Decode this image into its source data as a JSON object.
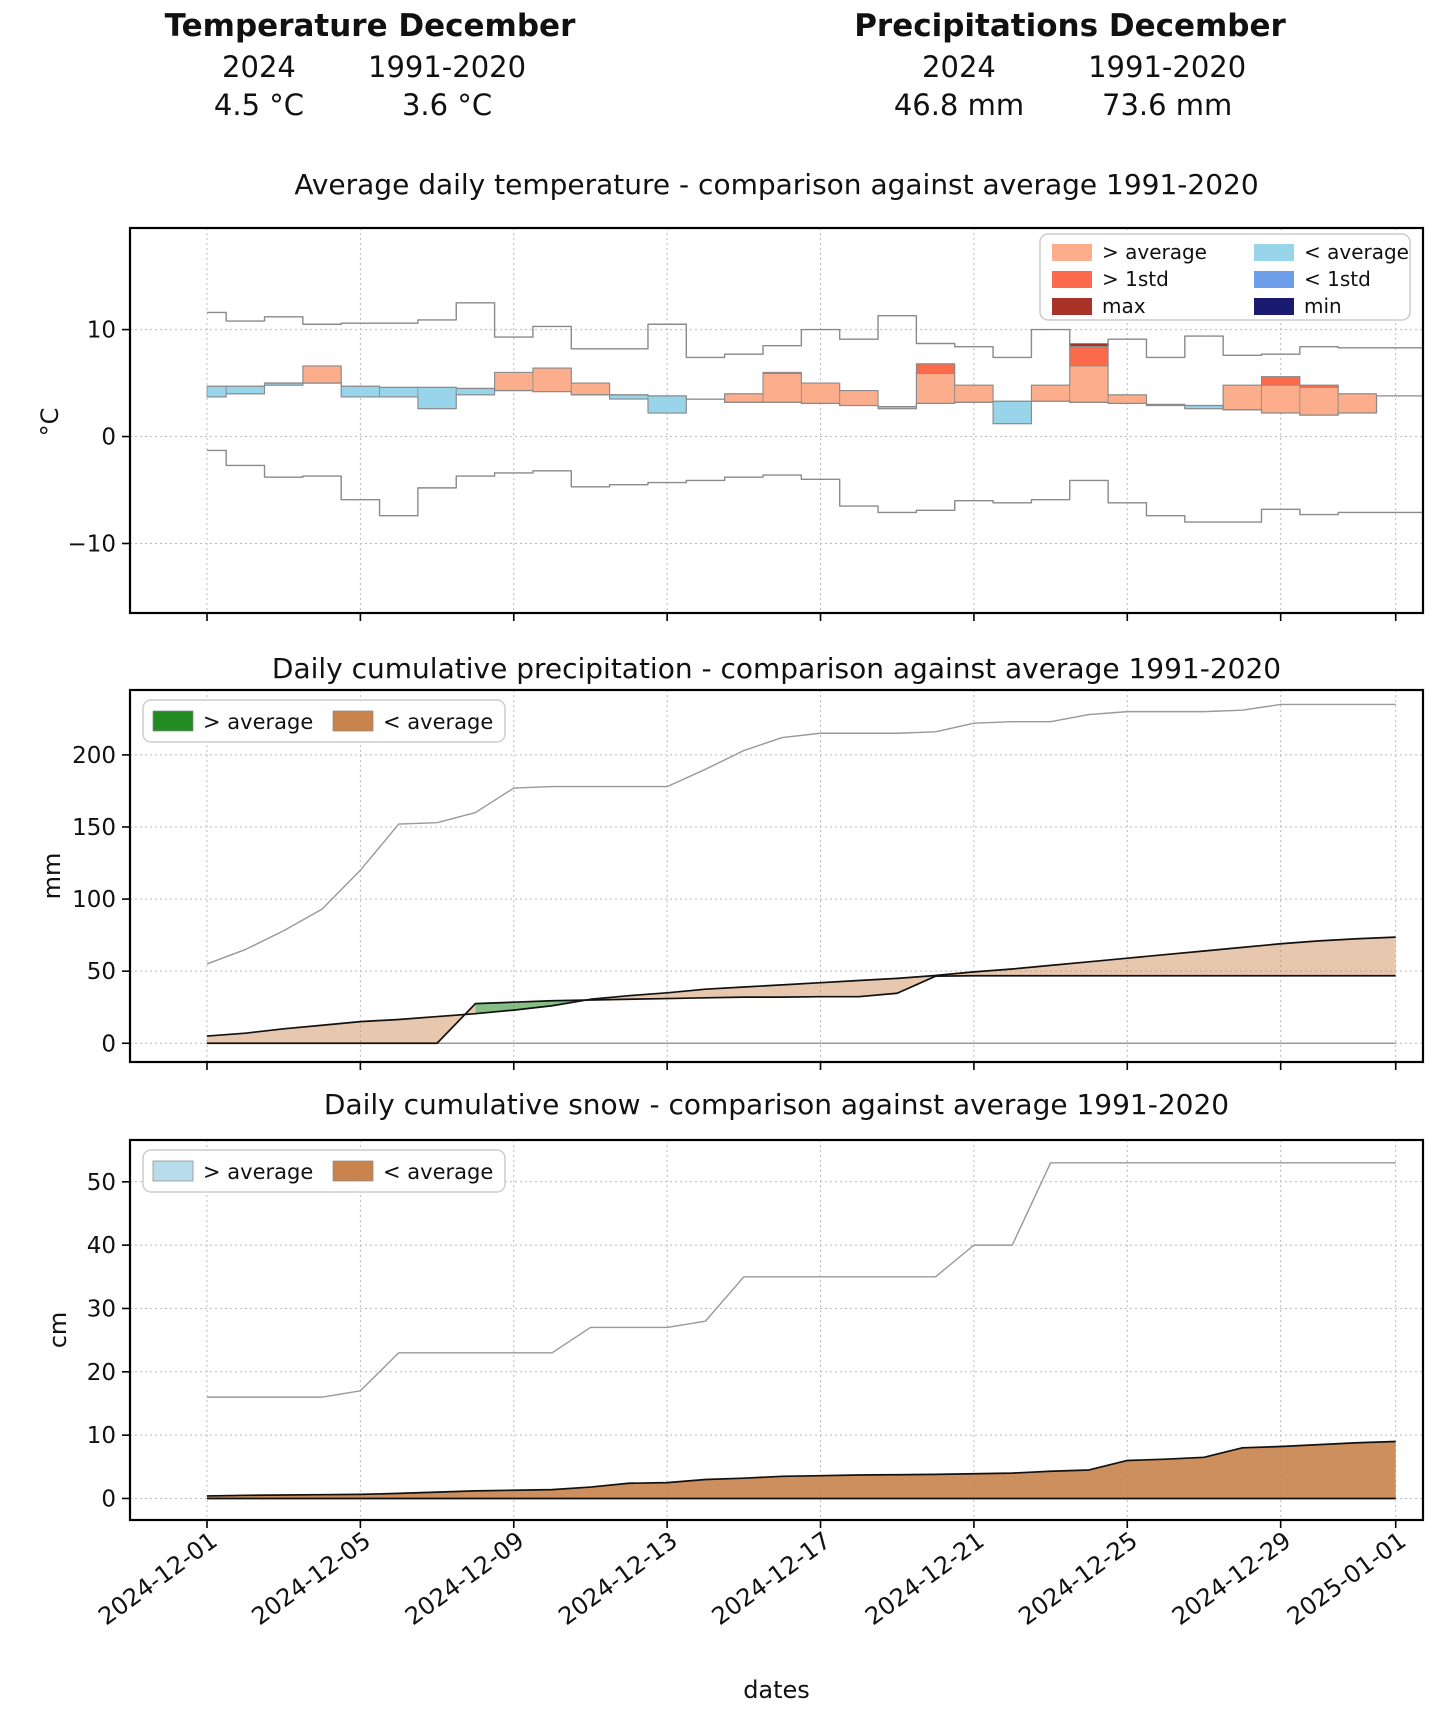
{
  "header": {
    "temperature": {
      "title": "Temperature December",
      "col1_label": "2024",
      "col1_value": "4.5 °C",
      "col2_label": "1991-2020",
      "col2_value": "3.6 °C"
    },
    "precipitation": {
      "title": "Precipitations December",
      "col1_label": "2024",
      "col1_value": "46.8 mm",
      "col2_label": "1991-2020",
      "col2_value": "73.6 mm"
    }
  },
  "colors": {
    "above_avg_temp": "#FCAE8C",
    "above_1std": "#FB6A4A",
    "record_max": "#A93228",
    "below_avg_temp": "#99D5EA",
    "below_1std": "#6D9EEA",
    "record_min": "#1A1A70",
    "above_avg_precip": "#228B22",
    "below_avg_precip": "#C9834C",
    "above_avg_snow": "#B8DCEA",
    "below_avg_snow": "#C9834C",
    "envelope_line": "#8a8a8a",
    "series_line": "#111111",
    "grid": "#bbbbbb"
  },
  "xlabel": "dates",
  "x_tick_labels": [
    "2024-12-01",
    "2024-12-05",
    "2024-12-09",
    "2024-12-13",
    "2024-12-17",
    "2024-12-21",
    "2024-12-25",
    "2024-12-29",
    "2025-01-01"
  ],
  "x_tick_day_index": [
    0,
    4,
    8,
    12,
    16,
    20,
    24,
    28,
    31
  ],
  "chart_data": [
    {
      "type": "bar",
      "subtype": "daily-step-comparison",
      "title": "Average daily temperature - comparison against average 1991-2020",
      "ylabel": "°C",
      "ylim": [
        -16.5,
        19.5
      ],
      "yticks": [
        -10,
        0,
        10
      ],
      "legend": [
        {
          "label": "> average",
          "color_key": "above_avg_temp"
        },
        {
          "label": "> 1std",
          "color_key": "above_1std"
        },
        {
          "label": "max",
          "color_key": "record_max"
        },
        {
          "label": "< average",
          "color_key": "below_avg_temp"
        },
        {
          "label": "< 1std",
          "color_key": "below_1std"
        },
        {
          "label": "min",
          "color_key": "record_min"
        }
      ],
      "days": "2024-12-01 .. 2025-01-01",
      "series": {
        "record_max": [
          11.6,
          10.8,
          11.2,
          10.5,
          10.6,
          10.6,
          10.9,
          12.5,
          9.3,
          10.3,
          8.2,
          8.2,
          10.5,
          7.4,
          7.7,
          8.5,
          10.0,
          9.1,
          11.3,
          8.7,
          8.4,
          7.4,
          10.0,
          8.4,
          9.1,
          7.4,
          9.4,
          7.6,
          7.7,
          8.4,
          8.3,
          8.3
        ],
        "record_min": [
          -1.3,
          -2.7,
          -3.8,
          -3.7,
          -5.9,
          -7.4,
          -4.8,
          -3.7,
          -3.4,
          -3.2,
          -4.7,
          -4.5,
          -4.3,
          -4.1,
          -3.8,
          -3.6,
          -4.0,
          -6.5,
          -7.1,
          -6.9,
          -6.0,
          -6.2,
          -5.9,
          -4.1,
          -6.2,
          -7.4,
          -8.0,
          -8.0,
          -6.8,
          -7.3,
          -7.1,
          -7.1
        ],
        "avg_1991_2020": [
          4.7,
          4.7,
          5.0,
          5.0,
          4.7,
          4.6,
          4.6,
          4.5,
          4.3,
          4.2,
          3.9,
          3.9,
          3.8,
          3.5,
          3.2,
          3.2,
          3.1,
          2.9,
          2.8,
          3.1,
          3.2,
          3.3,
          3.3,
          3.2,
          3.1,
          3.0,
          2.9,
          2.5,
          2.2,
          2.0,
          2.2,
          3.8
        ],
        "plus_1std": [
          7.4,
          7.4,
          7.7,
          7.7,
          7.4,
          7.3,
          7.3,
          7.2,
          7.0,
          6.9,
          6.6,
          6.6,
          6.5,
          6.2,
          5.9,
          5.9,
          5.8,
          5.6,
          5.5,
          5.9,
          5.9,
          6.0,
          6.0,
          6.6,
          5.8,
          5.7,
          5.6,
          5.2,
          4.8,
          4.6,
          4.9
        ],
        "temp_2024": [
          3.7,
          4.0,
          4.8,
          6.6,
          3.7,
          3.7,
          2.6,
          3.9,
          6.0,
          6.4,
          5.0,
          3.5,
          2.2,
          3.5,
          4.0,
          6.0,
          5.0,
          4.3,
          2.6,
          6.8,
          4.8,
          1.2,
          4.8,
          8.7,
          3.9,
          2.9,
          2.6,
          4.8,
          5.6,
          4.8,
          4.0
        ]
      }
    },
    {
      "type": "area",
      "subtype": "cumulative-comparison",
      "title": "Daily cumulative precipitation - comparison against average 1991-2020",
      "ylabel": "mm",
      "ylim": [
        -13,
        245
      ],
      "yticks": [
        0,
        50,
        100,
        150,
        200
      ],
      "legend": [
        {
          "label": "> average",
          "color_key": "above_avg_precip"
        },
        {
          "label": "< average",
          "color_key": "below_avg_precip"
        }
      ],
      "series": {
        "record_max": [
          55,
          65,
          78,
          93,
          120,
          152,
          153,
          160,
          177,
          178,
          178,
          178,
          178,
          190,
          203,
          212,
          215,
          215,
          215,
          216,
          222,
          223,
          223,
          228,
          230,
          230,
          230,
          231,
          235,
          235,
          235,
          235
        ],
        "record_min": [
          0,
          0,
          0,
          0,
          0,
          0,
          0,
          0,
          0,
          0,
          0,
          0,
          0,
          0,
          0,
          0,
          0,
          0,
          0,
          0,
          0,
          0,
          0,
          0,
          0,
          0,
          0,
          0,
          0,
          0,
          0,
          0
        ],
        "avg_1991_2020": [
          5,
          7,
          10,
          12.5,
          15,
          16.5,
          18.5,
          20.5,
          23,
          26,
          30.5,
          33,
          35,
          37.5,
          39,
          40.5,
          42,
          43.5,
          45,
          47,
          49.5,
          51.5,
          54,
          56.5,
          59,
          61.5,
          64,
          66.5,
          69,
          71,
          72.5,
          73.6
        ],
        "cum_2024": [
          0,
          0,
          0,
          0,
          0,
          0,
          0,
          27.5,
          28.5,
          29.5,
          30,
          30.5,
          31,
          31.5,
          32,
          32,
          32.3,
          32.3,
          34.7,
          46.5,
          46.8,
          46.8,
          46.8,
          46.8,
          46.8,
          46.8,
          46.8,
          46.8,
          46.8,
          46.8,
          46.8,
          46.8
        ]
      }
    },
    {
      "type": "area",
      "subtype": "cumulative-comparison",
      "title": "Daily cumulative snow - comparison against average 1991-2020",
      "ylabel": "cm",
      "ylim": [
        -3.4,
        56.6
      ],
      "yticks": [
        0,
        10,
        20,
        30,
        40,
        50
      ],
      "legend": [
        {
          "label": "> average",
          "color_key": "above_avg_snow"
        },
        {
          "label": "< average",
          "color_key": "below_avg_snow"
        }
      ],
      "series": {
        "record_max": [
          16,
          16,
          16,
          16,
          17,
          23,
          23,
          23,
          23,
          23,
          27,
          27,
          27,
          28,
          35,
          35,
          35,
          35,
          35,
          35,
          40,
          40,
          53,
          53,
          53,
          53,
          53,
          53,
          53,
          53,
          53,
          53
        ],
        "record_min": [
          0,
          0,
          0,
          0,
          0,
          0,
          0,
          0,
          0,
          0,
          0,
          0,
          0,
          0,
          0,
          0,
          0,
          0,
          0,
          0,
          0,
          0,
          0,
          0,
          0,
          0,
          0,
          0,
          0,
          0,
          0,
          0
        ],
        "avg_1991_2020": [
          0.4,
          0.5,
          0.55,
          0.6,
          0.65,
          0.8,
          1.0,
          1.2,
          1.3,
          1.4,
          1.8,
          2.4,
          2.5,
          3.0,
          3.2,
          3.5,
          3.6,
          3.7,
          3.75,
          3.8,
          3.9,
          4.0,
          4.3,
          4.5,
          6.0,
          6.2,
          6.5,
          8.0,
          8.2,
          8.5,
          8.8,
          9.0
        ],
        "cum_2024": [
          0,
          0,
          0,
          0,
          0,
          0,
          0,
          0,
          0,
          0,
          0,
          0,
          0,
          0,
          0,
          0,
          0,
          0,
          0,
          0,
          0,
          0,
          0,
          0,
          0,
          0,
          0,
          0,
          0,
          0,
          0,
          0
        ]
      }
    }
  ]
}
